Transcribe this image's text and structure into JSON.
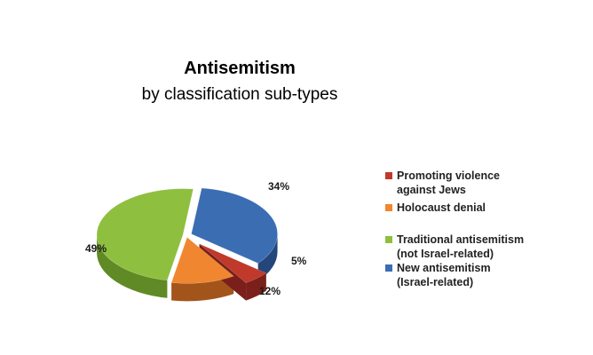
{
  "chart_data": {
    "type": "pie",
    "title": "Antisemitism",
    "subtitle": "by classification sub-types",
    "slices": [
      {
        "label": "Promoting violence against Jews",
        "display_label": "Promoting violence\nagainst Jews",
        "value": 5,
        "value_label": "5%",
        "color": "#c0392b",
        "side": "#7a1f1a",
        "exploded": true
      },
      {
        "label": "Holocaust denial",
        "display_label": "Holocaust denial",
        "value": 12,
        "value_label": "12%",
        "color": "#f0862f",
        "side": "#a3541a",
        "exploded": false
      },
      {
        "label": "Traditional antisemitism (not Israel-related)",
        "display_label": "Traditional antisemitism\n(not Israel-related)",
        "value": 49,
        "value_label": "49%",
        "color": "#8fbf3f",
        "side": "#5f8a25",
        "exploded": false
      },
      {
        "label": "New antisemitism (Israel-related)",
        "display_label": "New antisemitism\n(Israel-related)",
        "value": 34,
        "value_label": "34%",
        "color": "#3b6db3",
        "side": "#24467a",
        "exploded": false
      }
    ],
    "legend_position": "right",
    "chart_style": "3d-exploded-pie"
  }
}
